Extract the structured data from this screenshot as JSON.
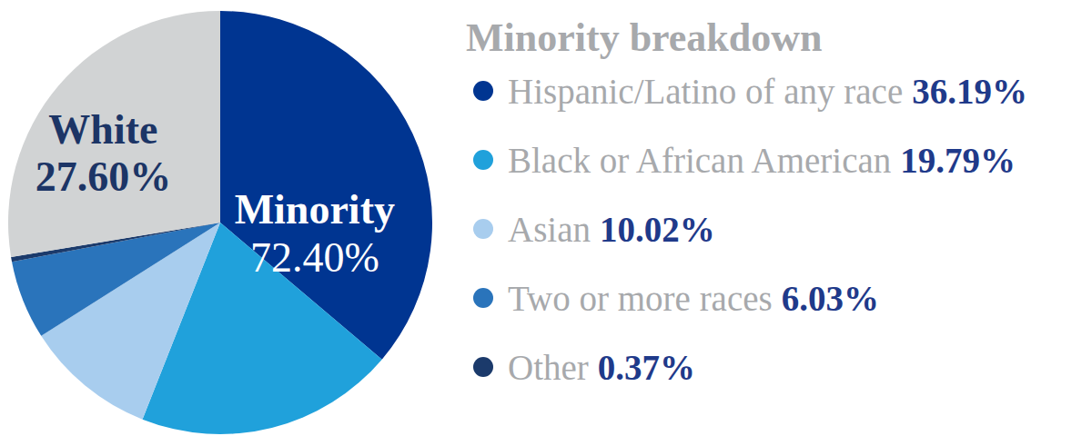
{
  "chart_data": {
    "type": "pie",
    "title": "Minority breakdown",
    "groups": [
      {
        "name": "Minority",
        "value": 72.4,
        "value_label": "72.40%",
        "categories": [
          "Hispanic/Latino of any race",
          "Black or African American",
          "Asian",
          "Two or more races",
          "Other"
        ],
        "values": [
          36.19,
          19.79,
          10.02,
          6.03,
          0.37
        ],
        "value_labels": [
          "36.19%",
          "19.79%",
          "10.02%",
          "6.03%",
          "0.37%"
        ],
        "colors": [
          "#003591",
          "#20a1db",
          "#a8cdee",
          "#2a74bb",
          "#1b3a6b"
        ]
      },
      {
        "name": "White",
        "value": 27.6,
        "value_label": "27.60%",
        "color": "#d1d3d4"
      }
    ]
  }
}
